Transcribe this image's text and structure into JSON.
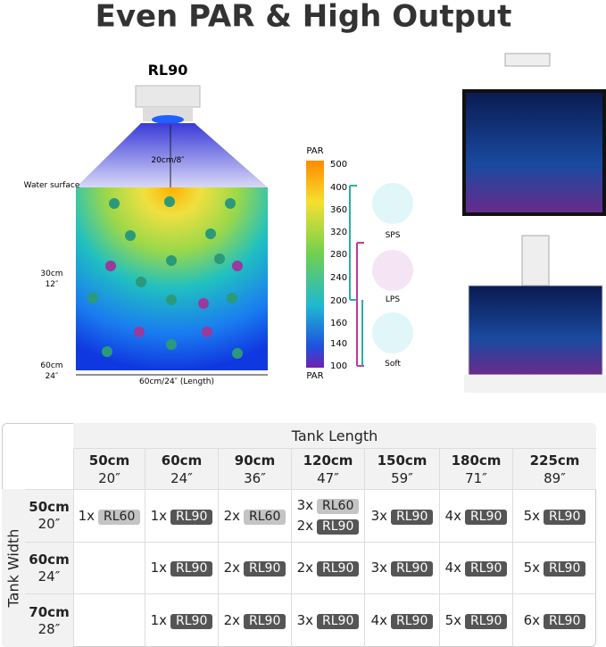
{
  "title": "Even PAR & High Output",
  "diagram": {
    "lamp": "RL90",
    "depth": "20cm/8″",
    "surface": "Water surface",
    "mid_cm": "30cm",
    "mid_in": "12″",
    "bottom_cm": "60cm",
    "bottom_in": "24″",
    "length": "60cm/24″ (Length)"
  },
  "par_scale": {
    "label": "PAR",
    "ticks": [
      "500",
      "400",
      "360",
      "320",
      "280",
      "240",
      "200",
      "160",
      "140",
      "100"
    ]
  },
  "corals": [
    "SPS",
    "LPS",
    "Soft"
  ],
  "table": {
    "length_header": "Tank Length",
    "width_header": "Tank Width",
    "columns": [
      {
        "cm": "50cm",
        "inch": "20″"
      },
      {
        "cm": "60cm",
        "inch": "24″"
      },
      {
        "cm": "90cm",
        "inch": "36″"
      },
      {
        "cm": "120cm",
        "inch": "47″"
      },
      {
        "cm": "150cm",
        "inch": "59″"
      },
      {
        "cm": "180cm",
        "inch": "71″"
      },
      {
        "cm": "225cm",
        "inch": "89″"
      }
    ],
    "rows": [
      {
        "cm": "50cm",
        "inch": "20″",
        "cells": [
          [
            {
              "qty": "1x",
              "model": "RL60"
            }
          ],
          [
            {
              "qty": "1x",
              "model": "RL90"
            }
          ],
          [
            {
              "qty": "2x",
              "model": "RL60"
            }
          ],
          [
            {
              "qty": "3x",
              "model": "RL60"
            },
            {
              "qty": "2x",
              "model": "RL90"
            }
          ],
          [
            {
              "qty": "3x",
              "model": "RL90"
            }
          ],
          [
            {
              "qty": "4x",
              "model": "RL90"
            }
          ],
          [
            {
              "qty": "5x",
              "model": "RL90"
            }
          ]
        ]
      },
      {
        "cm": "60cm",
        "inch": "24″",
        "cells": [
          [],
          [
            {
              "qty": "1x",
              "model": "RL90"
            }
          ],
          [
            {
              "qty": "2x",
              "model": "RL90"
            }
          ],
          [
            {
              "qty": "2x",
              "model": "RL90"
            }
          ],
          [
            {
              "qty": "3x",
              "model": "RL90"
            }
          ],
          [
            {
              "qty": "4x",
              "model": "RL90"
            }
          ],
          [
            {
              "qty": "5x",
              "model": "RL90"
            }
          ]
        ]
      },
      {
        "cm": "70cm",
        "inch": "28″",
        "cells": [
          [],
          [
            {
              "qty": "1x",
              "model": "RL90"
            }
          ],
          [
            {
              "qty": "2x",
              "model": "RL90"
            }
          ],
          [
            {
              "qty": "3x",
              "model": "RL90"
            }
          ],
          [
            {
              "qty": "4x",
              "model": "RL90"
            }
          ],
          [
            {
              "qty": "5x",
              "model": "RL90"
            }
          ],
          [
            {
              "qty": "6x",
              "model": "RL90"
            }
          ]
        ]
      }
    ]
  }
}
